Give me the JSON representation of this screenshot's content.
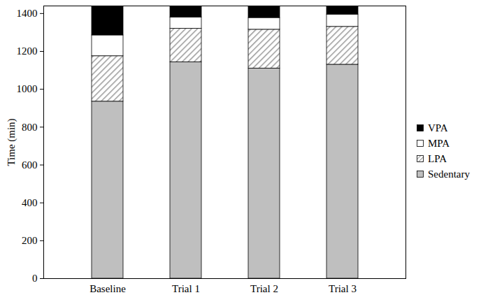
{
  "chart_data": {
    "type": "bar",
    "stacked": true,
    "legend": "right",
    "y_label": "Time (min)",
    "categories": [
      "Baseline",
      "Trial 1",
      "Trial 2",
      "Trial 3"
    ],
    "series": [
      {
        "name": "Sedentary",
        "color": "#bfbfbf",
        "values": [
          935,
          1143,
          1110,
          1130
        ]
      },
      {
        "name": "LPA",
        "color": "#9a9a9a",
        "marker": "hatch",
        "values": [
          240,
          177,
          205,
          200
        ]
      },
      {
        "name": "MPA",
        "color": "#ffffff",
        "values": [
          110,
          60,
          62,
          65
        ]
      },
      {
        "name": "VPA",
        "color": "#000000",
        "values": [
          155,
          60,
          63,
          45
        ]
      }
    ],
    "ylim": [
      0,
      1440
    ],
    "yticks": [
      0,
      200,
      400,
      600,
      800,
      1000,
      1200,
      1400
    ]
  }
}
